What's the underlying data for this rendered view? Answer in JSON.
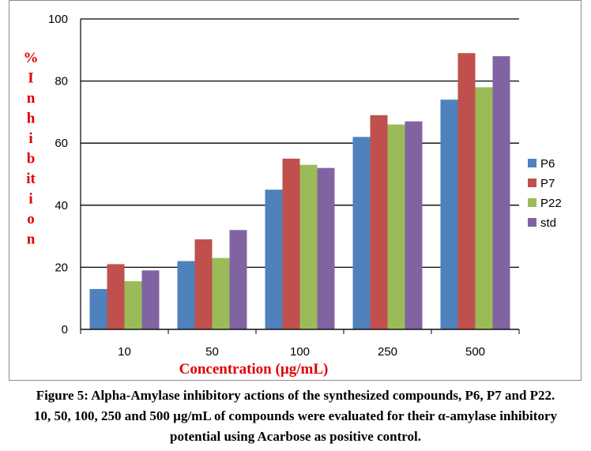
{
  "chart_data": {
    "type": "bar",
    "categories": [
      "10",
      "50",
      "100",
      "250",
      "500"
    ],
    "series": [
      {
        "name": "P6",
        "color": "#4f81bd",
        "values": [
          13,
          22,
          45,
          62,
          74
        ]
      },
      {
        "name": "P7",
        "color": "#c0504d",
        "values": [
          21,
          29,
          55,
          69,
          89
        ]
      },
      {
        "name": "P22",
        "color": "#9bbb59",
        "values": [
          15.5,
          23,
          53,
          66,
          78
        ]
      },
      {
        "name": "std",
        "color": "#8064a2",
        "values": [
          19,
          32,
          52,
          67,
          88
        ]
      }
    ],
    "xlabel": "Concentration (µg/mL)",
    "ylabel": "% Inhibition",
    "ylabel_lines": [
      "%",
      "I",
      "n",
      "h",
      "i",
      "b",
      "it",
      "i",
      "o",
      "n"
    ],
    "ylim": [
      0,
      100
    ],
    "yticks": [
      0,
      20,
      40,
      60,
      80,
      100
    ],
    "grid": true,
    "legend_position": "right",
    "label_color": "#e00000"
  },
  "caption": {
    "line1": "Figure 5: Alpha-Amylase inhibitory actions of the synthesized compounds, P6, P7 and P22.",
    "line2": "10, 50, 100, 250 and 500 µg/mL of compounds were evaluated for their α-amylase inhibitory",
    "line3": "potential using Acarbose as positive control."
  }
}
